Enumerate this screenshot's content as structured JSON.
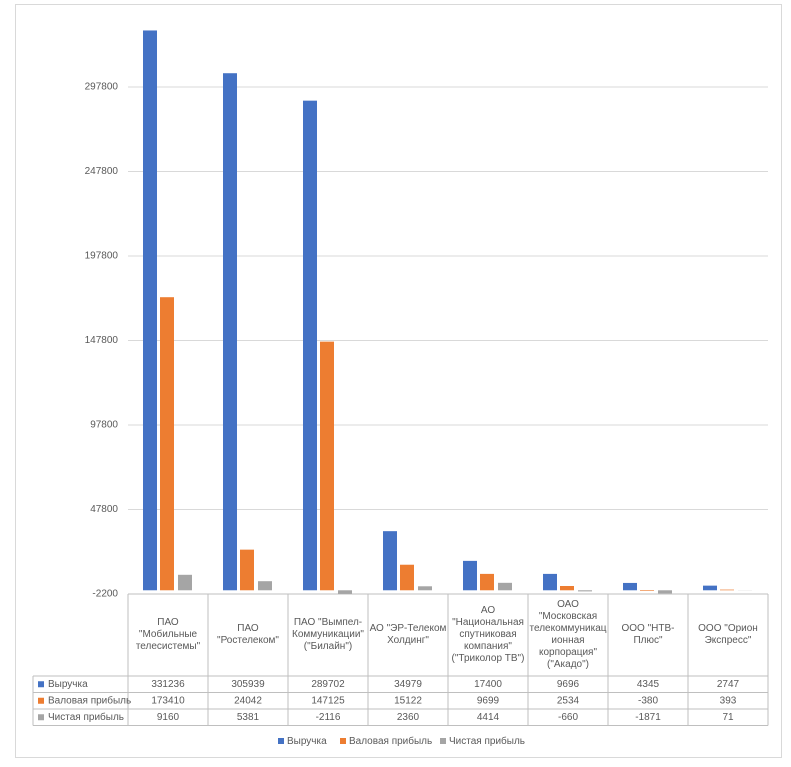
{
  "chart_data": {
    "type": "bar",
    "categories": [
      "ПАО \"Мобильные телесистемы\"",
      "ПАО \"Ростелеком\"",
      "ПАО \"Вымпел-Коммуникации\" (\"Билайн\")",
      "АО \"ЭР-Телеком Холдинг\"",
      "АО \"Национальная спутниковая компания\" (\"Триколор ТВ\")",
      "ОАО \"Московская телекоммуникационная корпорация\" (\"Акадо\")",
      "ООО \"НТВ-Плюс\"",
      "ООО \"Орион Экспресс\""
    ],
    "series": [
      {
        "name": "Выручка",
        "color": "#4472c4",
        "values": [
          331236,
          305939,
          289702,
          34979,
          17400,
          9696,
          4345,
          2747
        ]
      },
      {
        "name": "Валовая прибыль",
        "color": "#ed7d31",
        "values": [
          173410,
          24042,
          147125,
          15122,
          9699,
          2534,
          -380,
          393
        ]
      },
      {
        "name": "Чистая прибыль",
        "color": "#a5a5a5",
        "values": [
          9160,
          5381,
          -2116,
          2360,
          4414,
          -660,
          -1871,
          71
        ]
      }
    ],
    "ylim": [
      -2200,
      339200
    ],
    "yticks": [
      -2200,
      47800,
      97800,
      147800,
      197800,
      247800,
      297800
    ],
    "grid": true,
    "legend": "bottom"
  }
}
